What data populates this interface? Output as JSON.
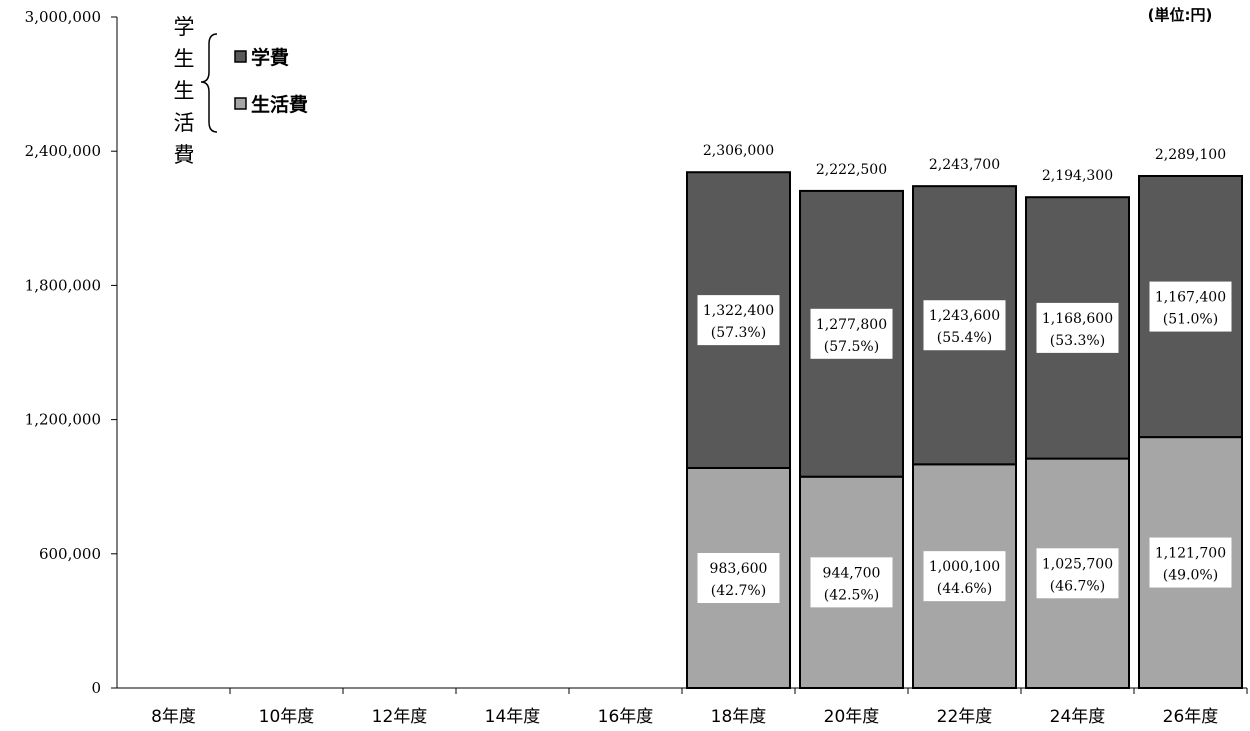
{
  "chart_data": {
    "type": "bar",
    "stacked": true,
    "unit_label": "(単位:円)",
    "legend_group_label": "学生生活費",
    "legend_placement": "top-left",
    "y_range": [
      0,
      3000000
    ],
    "y_ticks": [
      "0",
      "600,000",
      "1,200,000",
      "1,800,000",
      "2,400,000",
      "3,000,000"
    ],
    "categories": [
      "8年度",
      "10年度",
      "12年度",
      "14年度",
      "16年度",
      "18年度",
      "20年度",
      "22年度",
      "24年度",
      "26年度"
    ],
    "series": [
      {
        "name": "生活費",
        "color": "#a6a6a6",
        "values": [
          null,
          null,
          null,
          null,
          null,
          983600,
          944700,
          1000100,
          1025700,
          1121700
        ],
        "labels": [
          "",
          "",
          "",
          "",
          "",
          "983,600",
          "944,700",
          "1,000,100",
          "1,025,700",
          "1,121,700"
        ],
        "percents": [
          "",
          "",
          "",
          "",
          "",
          "(42.7%)",
          "(42.5%)",
          "(44.6%)",
          "(46.7%)",
          "(49.0%)"
        ]
      },
      {
        "name": "学費",
        "color": "#595959",
        "values": [
          null,
          null,
          null,
          null,
          null,
          1322400,
          1277800,
          1243600,
          1168600,
          1167400
        ],
        "labels": [
          "",
          "",
          "",
          "",
          "",
          "1,322,400",
          "1,277,800",
          "1,243,600",
          "1,168,600",
          "1,167,400"
        ],
        "percents": [
          "",
          "",
          "",
          "",
          "",
          "(57.3%)",
          "(57.5%)",
          "(55.4%)",
          "(53.3%)",
          "(51.0%)"
        ]
      }
    ],
    "totals": [
      null,
      null,
      null,
      null,
      null,
      2306000,
      2222500,
      2243700,
      2194300,
      2289100
    ],
    "total_labels": [
      "",
      "",
      "",
      "",
      "",
      "2,306,000",
      "2,222,500",
      "2,243,700",
      "2,194,300",
      "2,289,100"
    ]
  }
}
